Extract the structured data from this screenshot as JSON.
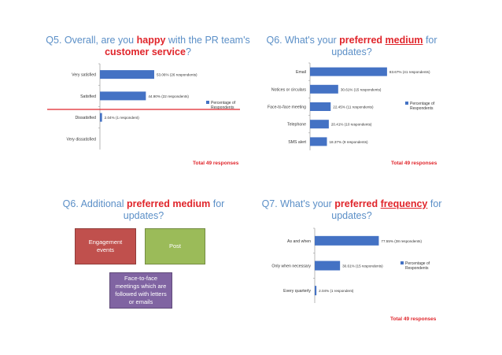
{
  "colors": {
    "bar": "#4472c4",
    "highlight": "#e0252b",
    "title": "#5b8fc7",
    "box_red": "#c0504d",
    "box_green": "#9bbb59",
    "box_purple": "#8064a2"
  },
  "panel1": {
    "title_pre": "Q5. Overall, are you ",
    "title_hl1": "happy",
    "title_mid": " with the PR team's",
    "title_hl2": "customer service",
    "title_post": "?",
    "total": "Total 49 responses"
  },
  "panel2": {
    "title_pre": "Q6.  What's your ",
    "title_hl1": "preferred ",
    "title_hl2": "medium",
    "title_post": " for",
    "title_line2": "updates?",
    "total": "Total 49 responses"
  },
  "panel3": {
    "title_pre": "Q6.  Additional ",
    "title_hl1": "preferred ",
    "title_hl2": "medium",
    "title_post": " for",
    "title_line2": "updates?",
    "boxes": {
      "engagement": "Engagement events",
      "post": "Post",
      "face": "Face-to-face meetings which are followed with letters or emails"
    }
  },
  "panel4": {
    "title_pre": "Q7.  What's your ",
    "title_hl1": "preferred ",
    "title_hl2": "frequency",
    "title_post": " for",
    "title_line2": "updates?",
    "total": "Total 49 responses"
  },
  "chart_data": [
    {
      "type": "bar",
      "orientation": "horizontal",
      "categories": [
        "Very satisfied",
        "Satisfied",
        "Dissatisfied",
        "Very dissatisfied"
      ],
      "values": [
        53.06,
        44.9,
        2.04,
        0
      ],
      "data_labels": [
        "53.06%  (26 respondents)",
        "44.90%  (22 respondents)",
        "2.04%  (1 respondent)",
        ""
      ],
      "legend": "Percentage of Respondents",
      "legend_position": "right",
      "xlim": [
        0,
        100
      ]
    },
    {
      "type": "bar",
      "orientation": "horizontal",
      "categories": [
        "Email",
        "Notices or circulars",
        "Face-to-face meeting",
        "Telephone",
        "SMS alert"
      ],
      "values": [
        83.67,
        30.61,
        22.45,
        20.41,
        18.37
      ],
      "data_labels": [
        "83.67%  (41 respondents)",
        "30.61%  (15 respondents)",
        "22.45%  (11 respondents)",
        "20.41%  (10 respondents)",
        "18.37%  (9 respondents)"
      ],
      "legend": "Percentage of Respondents",
      "legend_position": "right",
      "xlim": [
        0,
        100
      ]
    },
    {
      "type": "bar",
      "orientation": "horizontal",
      "categories": [
        "As and when",
        "Only when necessary",
        "Every quarterly"
      ],
      "values": [
        77.55,
        30.61,
        2.04
      ],
      "data_labels": [
        "77.55%  (38 respondents)",
        "30.61%  (15 respondents)",
        "2.04%  (1 respondent)"
      ],
      "legend": "Percentage of Respondents",
      "legend_position": "right",
      "xlim": [
        0,
        100
      ]
    }
  ]
}
